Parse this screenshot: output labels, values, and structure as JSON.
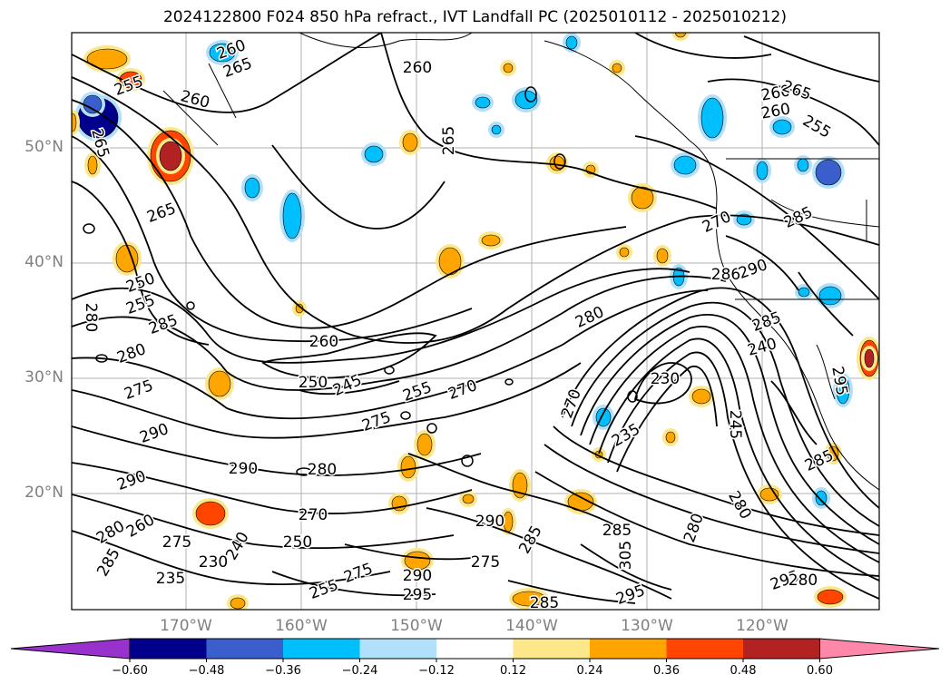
{
  "title": "2024122800 F024 850 hPa refract., IVT Landfall PC (2025010112 - 2025010212)",
  "map": {
    "projection": "PlateCarree",
    "lon_range": [
      -180,
      -110
    ],
    "lat_range": [
      10,
      60
    ],
    "lat_labels": [
      "50°N",
      "40°N",
      "30°N",
      "20°N"
    ],
    "lon_labels": [
      "170°W",
      "160°W",
      "150°W",
      "140°W",
      "130°W",
      "120°W"
    ],
    "gridlines": true,
    "contour_variable": "850 hPa refractivity",
    "contour_labels": [
      "255",
      "260",
      "265",
      "260",
      "260",
      "265",
      "265",
      "260",
      "260",
      "265",
      "255",
      "265",
      "250",
      "255",
      "280",
      "285",
      "280",
      "275",
      "260",
      "250",
      "245",
      "255",
      "270",
      "275",
      "280",
      "270",
      "230",
      "240",
      "245",
      "235",
      "270",
      "285",
      "290",
      "290",
      "280",
      "290",
      "280",
      "270",
      "275",
      "285",
      "290",
      "280",
      "285",
      "280",
      "260",
      "285",
      "235",
      "230",
      "240",
      "250",
      "255",
      "275",
      "295",
      "290",
      "285",
      "295",
      "285",
      "305",
      "295",
      "280",
      "275",
      "286",
      "290",
      "285",
      "295",
      "280"
    ]
  },
  "colorbar": {
    "ticks": [
      "−0.60",
      "−0.48",
      "−0.36",
      "−0.24",
      "−0.12",
      "0.12",
      "0.24",
      "0.36",
      "0.48",
      "0.60"
    ],
    "colors": [
      "#9932cc",
      "#00008b",
      "#3a5fcd",
      "#00bfff",
      "#b0e0fa",
      "#ffffff",
      "#fce78a",
      "#ffa500",
      "#ff4500",
      "#b22222",
      "#ff88aa"
    ],
    "extend": "both"
  }
}
